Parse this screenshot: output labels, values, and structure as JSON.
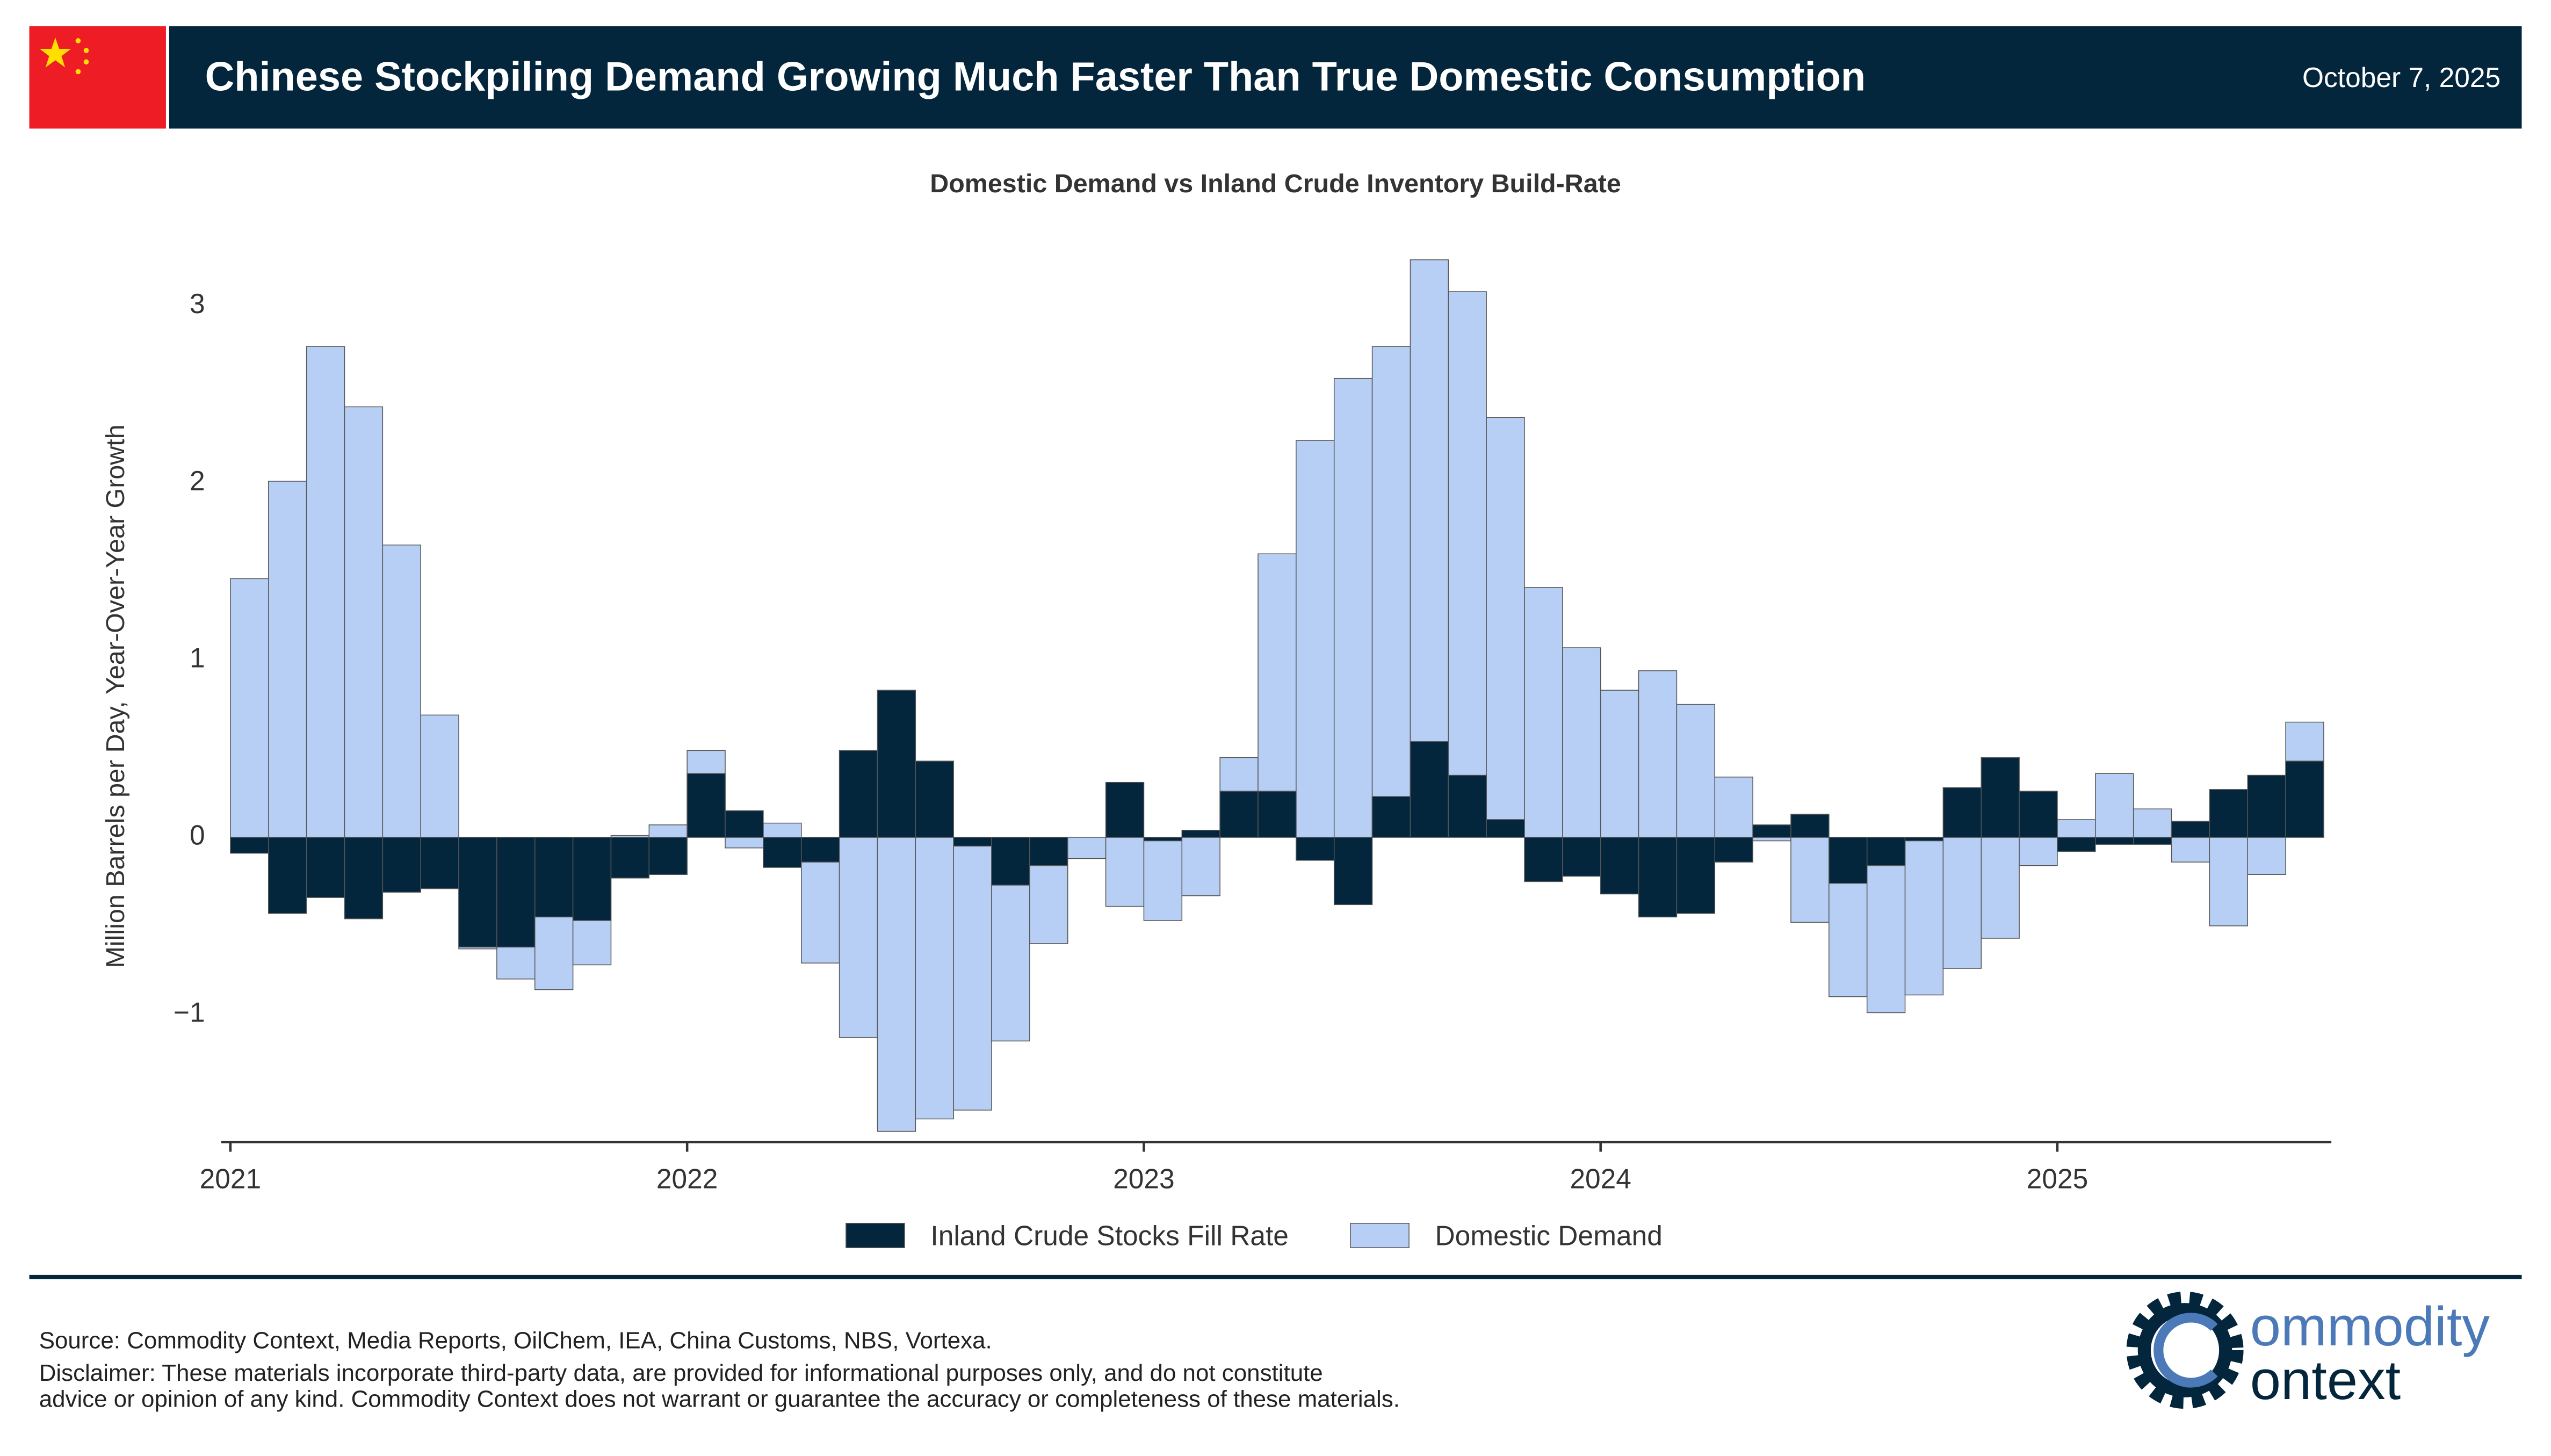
{
  "header": {
    "title": "Chinese Stockpiling Demand Growing Much Faster Than True Domestic Consumption",
    "date": "October 7, 2025"
  },
  "chart_data": {
    "type": "bar",
    "mode": "overlay",
    "title": "Domestic Demand vs Inland Crude Inventory Build-Rate",
    "ylabel": "Million Barrels per Day, Year-Over-Year Growth",
    "categories": [
      null,
      null,
      null,
      null,
      null,
      null,
      null,
      null,
      null,
      null,
      null,
      null,
      null,
      null,
      null,
      null,
      null,
      null,
      null,
      null,
      null,
      null,
      null,
      null,
      null,
      null,
      null,
      null,
      null,
      null,
      null,
      null,
      null,
      null,
      null,
      null,
      null,
      null,
      null,
      null,
      null,
      null,
      null,
      null,
      null,
      null,
      null,
      null,
      null,
      null,
      null,
      null,
      null,
      null,
      null
    ],
    "series": [
      {
        "name": "Domestic Demand",
        "color": "#b8cff5",
        "values": [
          1.46,
          2.01,
          2.77,
          2.43,
          1.65,
          0.69,
          -0.63,
          -0.8,
          -0.86,
          -0.72,
          0.01,
          0.07,
          0.49,
          -0.06,
          0.08,
          -0.71,
          -1.13,
          -1.66,
          -1.59,
          -1.54,
          -1.15,
          -0.6,
          -0.12,
          -0.39,
          -0.47,
          -0.33,
          0.45,
          1.6,
          2.24,
          2.59,
          2.77,
          3.26,
          3.08,
          2.37,
          1.41,
          1.07,
          0.83,
          0.94,
          0.75,
          0.34,
          -0.02,
          -0.48,
          -0.9,
          -0.99,
          -0.89,
          -0.74,
          -0.57,
          -0.16,
          0.1,
          0.36,
          0.16,
          -0.14,
          -0.5,
          -0.21,
          0.65
        ]
      },
      {
        "name": "Inland Crude Stocks Fill Rate",
        "color": "#03263d",
        "values": [
          -0.09,
          -0.43,
          -0.34,
          -0.46,
          -0.31,
          -0.29,
          -0.62,
          -0.62,
          -0.45,
          -0.47,
          -0.23,
          -0.21,
          0.36,
          0.15,
          -0.17,
          -0.14,
          0.49,
          0.83,
          0.43,
          -0.05,
          -0.27,
          -0.16,
          0,
          0.31,
          -0.02,
          0.04,
          0.26,
          0.26,
          -0.13,
          -0.38,
          0.23,
          0.54,
          0.35,
          0.1,
          -0.25,
          -0.22,
          -0.32,
          -0.45,
          -0.43,
          -0.14,
          0.07,
          0.13,
          -0.26,
          -0.16,
          -0.02,
          0.28,
          0.45,
          0.26,
          -0.08,
          -0.04,
          -0.04,
          0.09,
          0.27,
          0.35,
          0.43
        ]
      }
    ],
    "legend_order": [
      1,
      0
    ],
    "ylim": [
      -1.72,
      3.4
    ],
    "yticks": [
      {
        "value": -1,
        "label": "−1"
      },
      0,
      1,
      2,
      3
    ],
    "xlim": [
      2020.98,
      2025.6
    ],
    "xticks": [
      2021,
      2022,
      2023,
      2024,
      2025
    ],
    "x_start": 2021,
    "periods_per_tick": 12
  },
  "footer": {
    "source": "Source: Commodity Context, Media Reports, OilChem, IEA, China Customs, NBS, Vortexa.",
    "disclaimer": [
      "Disclaimer: These materials incorporate third-party data, are provided for informational purposes only, and do not constitute",
      "advice or opinion of any kind. Commodity Context does not warrant or guarantee the accuracy or completeness of these materials."
    ],
    "logo": [
      "ommodity",
      "ontext"
    ]
  }
}
